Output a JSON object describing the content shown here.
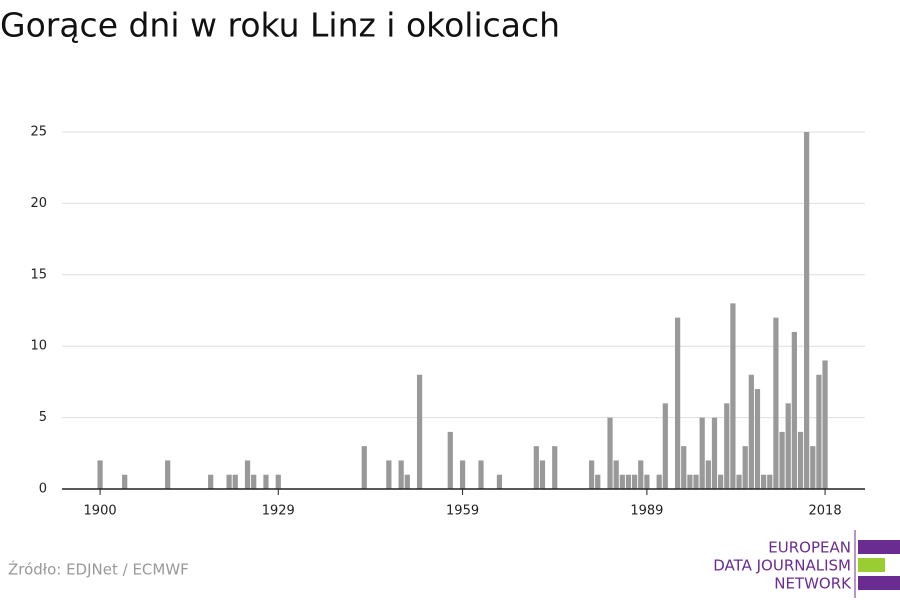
{
  "chart_data": {
    "type": "bar",
    "title": "Gorące dni w roku Linz i okolicach",
    "source": "Źródło: EDJNet / ECMWF",
    "logo": [
      "EUROPEAN",
      "DATA JOURNALISM",
      "NETWORK"
    ],
    "x": [
      1900,
      1904,
      1911,
      1918,
      1921,
      1922,
      1924,
      1925,
      1927,
      1929,
      1943,
      1947,
      1949,
      1950,
      1952,
      1957,
      1959,
      1962,
      1965,
      1971,
      1972,
      1974,
      1980,
      1981,
      1983,
      1984,
      1985,
      1986,
      1987,
      1988,
      1989,
      1991,
      1992,
      1994,
      1995,
      1996,
      1997,
      1998,
      1999,
      2000,
      2001,
      2002,
      2003,
      2004,
      2005,
      2006,
      2007,
      2008,
      2009,
      2010,
      2011,
      2012,
      2013,
      2014,
      2015,
      2016,
      2017,
      2018
    ],
    "values": [
      2,
      1,
      2,
      1,
      1,
      1,
      2,
      1,
      1,
      1,
      3,
      2,
      2,
      1,
      8,
      4,
      2,
      2,
      1,
      3,
      2,
      3,
      2,
      1,
      5,
      2,
      1,
      1,
      1,
      2,
      1,
      1,
      6,
      12,
      3,
      1,
      1,
      5,
      2,
      5,
      1,
      6,
      13,
      1,
      3,
      8,
      7,
      1,
      1,
      12,
      4,
      6,
      11,
      4,
      25,
      3,
      8,
      9
    ],
    "color": "#999999",
    "xlim": [
      1893.8,
      2024.5
    ],
    "xticks": [
      1900,
      1929,
      1959,
      1989,
      2018
    ],
    "ylim": [
      0,
      25
    ],
    "yticks": [
      0,
      5,
      10,
      15,
      20,
      25
    ],
    "grid": true
  }
}
